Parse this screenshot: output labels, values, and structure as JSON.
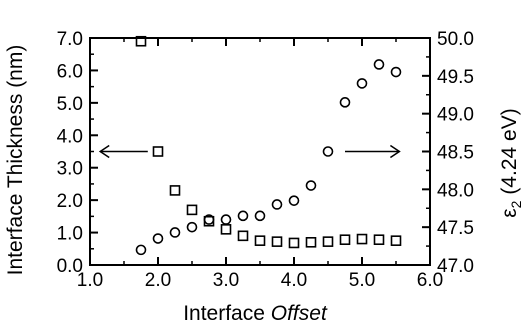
{
  "chart_data": {
    "type": "scatter",
    "xlabel": {
      "prefix": "Interface ",
      "emphasis": "Offset"
    },
    "ylabel_left": "Interface Thickness (nm)",
    "ylabel_right": {
      "symbol": "ε",
      "subscript": "2",
      "rest": " (4.24 eV)"
    },
    "xlim": [
      1.0,
      6.0
    ],
    "ylim_left": [
      0.0,
      7.0
    ],
    "ylim_right": [
      47.0,
      50.0
    ],
    "x_ticks": [
      "1.0",
      "2.0",
      "3.0",
      "4.0",
      "5.0",
      "6.0"
    ],
    "y_left_ticks": [
      "0.0",
      "1.0",
      "2.0",
      "3.0",
      "4.0",
      "5.0",
      "6.0",
      "7.0"
    ],
    "y_right_ticks": [
      "47.0",
      "47.5",
      "48.0",
      "48.5",
      "49.0",
      "49.5",
      "50.0"
    ],
    "grid": false,
    "series": [
      {
        "marker": "square",
        "axis": "left",
        "x": [
          1.75,
          2.0,
          2.25,
          2.5,
          2.75,
          3.0,
          3.25,
          3.5,
          3.75,
          4.0,
          4.25,
          4.5,
          4.75,
          5.0,
          5.25,
          5.5
        ],
        "y": [
          6.9,
          3.5,
          2.3,
          1.7,
          1.35,
          1.1,
          0.9,
          0.75,
          0.72,
          0.68,
          0.7,
          0.72,
          0.78,
          0.8,
          0.78,
          0.75
        ]
      },
      {
        "marker": "circle",
        "axis": "right",
        "x": [
          1.75,
          2.0,
          2.25,
          2.5,
          2.75,
          3.0,
          3.25,
          3.5,
          3.75,
          4.0,
          4.25,
          4.5,
          4.75,
          5.0,
          5.25,
          5.5
        ],
        "y": [
          47.2,
          47.35,
          47.43,
          47.5,
          47.6,
          47.6,
          47.65,
          47.65,
          47.8,
          47.85,
          48.05,
          48.5,
          49.15,
          49.4,
          49.65,
          49.55
        ]
      }
    ],
    "annotations": [
      "left-arrow",
      "right-arrow"
    ]
  }
}
